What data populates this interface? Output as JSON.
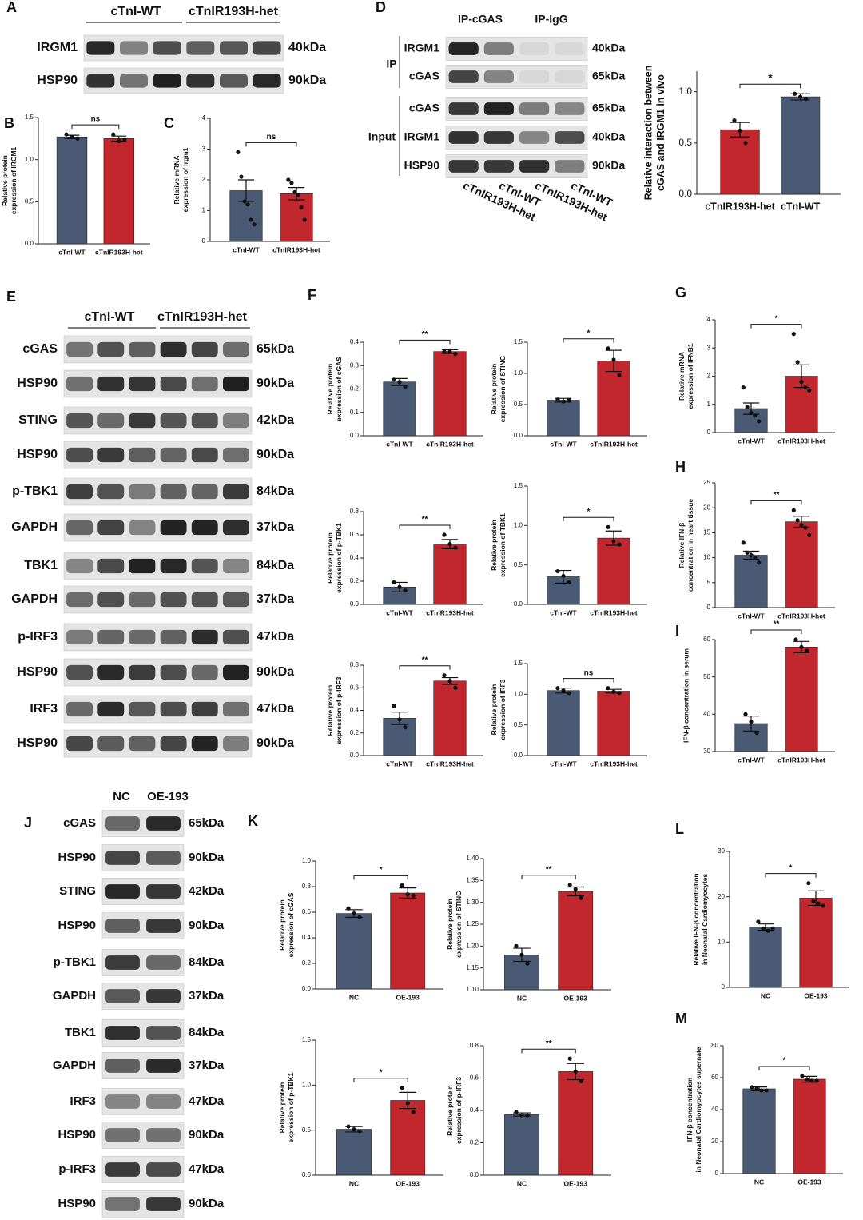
{
  "blots": [
    {
      "panel": "A",
      "groups": [
        "cTnI-WT",
        "cTnIR193H-het"
      ],
      "rows": [
        {
          "label": "IRGM1",
          "size": "40kDa"
        },
        {
          "label": "HSP90",
          "size": "90kDa"
        }
      ]
    },
    {
      "panel": "D",
      "groups": [
        "IP-cGAS",
        "IP-IgG"
      ],
      "side_labels": [
        "IP",
        "Input"
      ],
      "rows": [
        {
          "label": "IRGM1",
          "size": "40kDa"
        },
        {
          "label": "cGAS",
          "size": "65kDa"
        },
        {
          "label": "cGAS",
          "size": "65kDa"
        },
        {
          "label": "IRGM1",
          "size": "40kDa"
        },
        {
          "label": "HSP90",
          "size": "90kDa"
        }
      ],
      "lane_labels": [
        "cTnIR193H-het",
        "cTnI-WT",
        "cTnIR193H-het",
        "cTnI-WT"
      ]
    },
    {
      "panel": "E",
      "groups": [
        "cTnI-WT",
        "cTnIR193H-het"
      ],
      "rows": [
        {
          "label": "cGAS",
          "size": "65kDa"
        },
        {
          "label": "HSP90",
          "size": "90kDa"
        },
        {
          "label": "STING",
          "size": "42kDa"
        },
        {
          "label": "HSP90",
          "size": "90kDa"
        },
        {
          "label": "p-TBK1",
          "size": "84kDa"
        },
        {
          "label": "GAPDH",
          "size": "37kDa"
        },
        {
          "label": "TBK1",
          "size": "84kDa"
        },
        {
          "label": "GAPDH",
          "size": "37kDa"
        },
        {
          "label": "p-IRF3",
          "size": "47kDa"
        },
        {
          "label": "HSP90",
          "size": "90kDa"
        },
        {
          "label": "IRF3",
          "size": "47kDa"
        },
        {
          "label": "HSP90",
          "size": "90kDa"
        }
      ]
    },
    {
      "panel": "J",
      "groups": [
        "NC",
        "OE-193"
      ],
      "rows": [
        {
          "label": "cGAS",
          "size": "65kDa"
        },
        {
          "label": "HSP90",
          "size": "90kDa"
        },
        {
          "label": "STING",
          "size": "42kDa"
        },
        {
          "label": "HSP90",
          "size": "90kDa"
        },
        {
          "label": "p-TBK1",
          "size": "84kDa"
        },
        {
          "label": "GAPDH",
          "size": "37kDa"
        },
        {
          "label": "TBK1",
          "size": "84kDa"
        },
        {
          "label": "GAPDH",
          "size": "37kDa"
        },
        {
          "label": "IRF3",
          "size": "47kDa"
        },
        {
          "label": "HSP90",
          "size": "90kDa"
        },
        {
          "label": "p-IRF3",
          "size": "47kDa"
        },
        {
          "label": "HSP90",
          "size": "90kDa"
        }
      ]
    }
  ],
  "chart_data": [
    {
      "type": "bar",
      "panel": "B",
      "ylabel": [
        "Relative protein",
        "expression of IRGM1"
      ],
      "categories": [
        "cTnI-WT",
        "cTnIR193H-het"
      ],
      "colors": [
        "#4b5a74",
        "#c1272d"
      ],
      "values": [
        1.27,
        1.25
      ],
      "errors": [
        0.02,
        0.03
      ],
      "points": [
        [
          1.3,
          1.27,
          1.25
        ],
        [
          1.3,
          1.22,
          1.24
        ]
      ],
      "significance": "ns",
      "ylim": [
        0,
        1.5
      ],
      "yticks": [
        {
          "value": 0,
          "label": "0.0"
        },
        0.5,
        {
          "value": 1,
          "label": "1.0"
        },
        1.5
      ]
    },
    {
      "type": "bar",
      "panel": "C",
      "ylabel": [
        "Relative mRNA",
        "expression of Irgm1"
      ],
      "categories": [
        "cTnI-WT",
        "cTnIR193H-het"
      ],
      "colors": [
        "#4b5a74",
        "#c1272d"
      ],
      "values": [
        1.65,
        1.55
      ],
      "errors": [
        0.35,
        0.2
      ],
      "points": [
        [
          2.9,
          2.1,
          1.3,
          1.2,
          0.7,
          0.55
        ],
        [
          2.0,
          1.9,
          1.6,
          1.5,
          1.1,
          0.7
        ]
      ],
      "significance": "ns",
      "ylim": [
        0,
        4
      ],
      "yticks": [
        0,
        1,
        2,
        3,
        4
      ]
    },
    {
      "type": "bar",
      "ylabel": [
        "Relative interaction between",
        "cGAS and IRGM1 in vivo"
      ],
      "categories": [
        "cTnIR193H-het",
        "cTnI-WT"
      ],
      "colors": [
        "#c1272d",
        "#4b5a74"
      ],
      "values": [
        0.63,
        0.95
      ],
      "errors": [
        0.07,
        0.03
      ],
      "points": [
        [
          0.72,
          0.62,
          0.5
        ],
        [
          0.98,
          0.95,
          0.93
        ]
      ],
      "significance": "*",
      "ylim": [
        0,
        1.2
      ],
      "yticks": [
        {
          "value": 0,
          "label": "0.0"
        },
        0.5,
        {
          "value": 1,
          "label": "1.0"
        }
      ]
    },
    {
      "type": "bar",
      "panel": "F",
      "ylabel": [
        "Relative protein",
        "expression of cGAS"
      ],
      "categories": [
        "cTnI-WT",
        "cTnIR193H-het"
      ],
      "colors": [
        "#4b5a74",
        "#c1272d"
      ],
      "values": [
        0.23,
        0.36
      ],
      "errors": [
        0.015,
        0.008
      ],
      "points": [
        [
          0.24,
          0.23,
          0.21
        ],
        [
          0.36,
          0.36,
          0.35
        ]
      ],
      "significance": "**",
      "ylim": [
        0,
        0.4
      ],
      "yticks": [
        {
          "value": 0,
          "label": "0.0"
        },
        0.1,
        0.2,
        0.3,
        0.4
      ]
    },
    {
      "type": "bar",
      "ylabel": [
        "Relative protein",
        "expression of STING"
      ],
      "categories": [
        "cTnI-WT",
        "cTnIR193H-het"
      ],
      "colors": [
        "#4b5a74",
        "#c1272d"
      ],
      "values": [
        0.57,
        1.2
      ],
      "errors": [
        0.03,
        0.17
      ],
      "points": [
        [
          0.58,
          0.55,
          0.57
        ],
        [
          1.4,
          1.22,
          0.97
        ]
      ],
      "significance": "*",
      "ylim": [
        0,
        1.5
      ],
      "yticks": [
        {
          "value": 0,
          "label": "0.0"
        },
        0.5,
        {
          "value": 1,
          "label": "1.0"
        },
        1.5
      ]
    },
    {
      "type": "bar",
      "ylabel": [
        "Relative  protein",
        "expression of p-TBK1"
      ],
      "categories": [
        "cTnI-WT",
        "cTnIR193H-het"
      ],
      "colors": [
        "#4b5a74",
        "#c1272d"
      ],
      "values": [
        0.15,
        0.52
      ],
      "errors": [
        0.04,
        0.04
      ],
      "points": [
        [
          0.19,
          0.15,
          0.12
        ],
        [
          0.6,
          0.52,
          0.49
        ]
      ],
      "significance": "**",
      "ylim": [
        0,
        0.8
      ],
      "yticks": [
        {
          "value": 0,
          "label": "0.0"
        },
        0.2,
        0.4,
        0.6,
        0.8
      ]
    },
    {
      "type": "bar",
      "ylabel": [
        "Relative protein",
        "expression of TBK1"
      ],
      "categories": [
        "cTnI-WT",
        "cTnIR193H-het"
      ],
      "colors": [
        "#4b5a74",
        "#c1272d"
      ],
      "values": [
        0.35,
        0.84
      ],
      "errors": [
        0.08,
        0.09
      ],
      "points": [
        [
          0.42,
          0.36,
          0.28
        ],
        [
          0.98,
          0.8,
          0.76
        ]
      ],
      "significance": "*",
      "ylim": [
        0,
        1.5
      ],
      "yticks": [
        {
          "value": 0,
          "label": "0.0"
        },
        0.5,
        {
          "value": 1,
          "label": "1.0"
        },
        1.5
      ]
    },
    {
      "type": "bar",
      "ylabel": [
        "Relative protein",
        "expression of p-IRF3"
      ],
      "categories": [
        "cTnI-WT",
        "cTnIR193H-het"
      ],
      "colors": [
        "#4b5a74",
        "#c1272d"
      ],
      "values": [
        0.33,
        0.66
      ],
      "errors": [
        0.055,
        0.03
      ],
      "points": [
        [
          0.44,
          0.32,
          0.25
        ],
        [
          0.71,
          0.66,
          0.6
        ]
      ],
      "significance": "**",
      "ylim": [
        0,
        0.8
      ],
      "yticks": [
        {
          "value": 0,
          "label": "0.0"
        },
        0.2,
        0.4,
        0.6,
        0.8
      ]
    },
    {
      "type": "bar",
      "ylabel": [
        "Relative protein",
        "expression of IRF3"
      ],
      "categories": [
        "cTnI-WT",
        "cTnIR193H-het"
      ],
      "colors": [
        "#4b5a74",
        "#c1272d"
      ],
      "values": [
        1.06,
        1.05
      ],
      "errors": [
        0.04,
        0.03
      ],
      "points": [
        [
          1.1,
          1.06,
          1.02
        ],
        [
          1.1,
          1.04,
          1.02
        ]
      ],
      "significance": "ns",
      "ylim": [
        0,
        1.5
      ],
      "yticks": [
        {
          "value": 0,
          "label": "0.0"
        },
        0.5,
        {
          "value": 1,
          "label": "1.0"
        },
        1.5
      ]
    },
    {
      "type": "bar",
      "panel": "G",
      "ylabel": [
        "Relative mRNA",
        "expression of IFNB1"
      ],
      "categories": [
        "cTnI-WT",
        "cTnIR193H-het"
      ],
      "colors": [
        "#4b5a74",
        "#c1272d"
      ],
      "values": [
        0.85,
        2.0
      ],
      "errors": [
        0.2,
        0.4
      ],
      "points": [
        [
          1.6,
          0.9,
          0.7,
          0.6,
          0.4
        ],
        [
          3.5,
          2.5,
          1.8,
          1.6,
          1.5
        ]
      ],
      "significance": "*",
      "ylim": [
        0,
        4
      ],
      "yticks": [
        0,
        1,
        2,
        3,
        4
      ]
    },
    {
      "type": "bar",
      "panel": "H",
      "ylabel": [
        "Relative IFN-β",
        "concentration in heart tissue"
      ],
      "categories": [
        "cTnI-WT",
        "cTnIR193H-het"
      ],
      "colors": [
        "#4b5a74",
        "#c1272d"
      ],
      "values": [
        10.5,
        17.2
      ],
      "errors": [
        0.8,
        1.1
      ],
      "points": [
        [
          13,
          11,
          10.5,
          10,
          9
        ],
        [
          19.5,
          17.5,
          16.5,
          16,
          14.5
        ]
      ],
      "significance": "**",
      "ylim": [
        0,
        25
      ],
      "yticks": [
        0,
        5,
        10,
        15,
        20,
        25
      ]
    },
    {
      "type": "bar",
      "panel": "I",
      "ylabel": [
        "IFN-β concentration in serum"
      ],
      "categories": [
        "cTnI-WT",
        "cTnIR193H-het"
      ],
      "colors": [
        "#4b5a74",
        "#c1272d"
      ],
      "values": [
        37.5,
        58
      ],
      "errors": [
        2,
        1.5
      ],
      "points": [
        [
          40,
          38,
          35
        ],
        [
          60,
          58,
          57
        ]
      ],
      "significance": "**",
      "ylim": [
        30,
        60
      ],
      "yticks": [
        30,
        40,
        50,
        60
      ]
    },
    {
      "type": "bar",
      "panel": "K",
      "ylabel": [
        "Relative protein",
        "expression of cGAS"
      ],
      "categories": [
        "NC",
        "OE-193"
      ],
      "colors": [
        "#4b5a74",
        "#c1272d"
      ],
      "values": [
        0.59,
        0.75
      ],
      "errors": [
        0.03,
        0.04
      ],
      "points": [
        [
          0.63,
          0.59,
          0.56
        ],
        [
          0.81,
          0.74,
          0.73
        ]
      ],
      "significance": "*",
      "ylim": [
        0,
        1.0
      ],
      "yticks": [
        {
          "value": 0,
          "label": "0.0"
        },
        0.2,
        0.4,
        0.6,
        0.8,
        {
          "value": 1,
          "label": "1.0"
        }
      ]
    },
    {
      "type": "bar",
      "ylabel": [
        "Relative protein",
        "expression of STING"
      ],
      "categories": [
        "NC",
        "OE-193"
      ],
      "colors": [
        "#4b5a74",
        "#c1272d"
      ],
      "values": [
        1.18,
        1.325
      ],
      "errors": [
        0.015,
        0.01
      ],
      "points": [
        [
          1.2,
          1.18,
          1.16
        ],
        [
          1.34,
          1.33,
          1.31
        ]
      ],
      "significance": "**",
      "ylim": [
        1.1,
        1.4
      ],
      "yticks": [
        {
          "value": 1.1,
          "label": "1.10"
        },
        1.15,
        {
          "value": 1.2,
          "label": "1.20"
        },
        1.25,
        {
          "value": 1.3,
          "label": "1.30"
        },
        1.35,
        {
          "value": 1.4,
          "label": "1.40"
        }
      ]
    },
    {
      "type": "bar",
      "ylabel": [
        "Relative protein",
        "expression of p-TBK1"
      ],
      "categories": [
        "NC",
        "OE-193"
      ],
      "colors": [
        "#4b5a74",
        "#c1272d"
      ],
      "values": [
        0.51,
        0.83
      ],
      "errors": [
        0.03,
        0.09
      ],
      "points": [
        [
          0.54,
          0.51,
          0.49
        ],
        [
          0.97,
          0.8,
          0.7
        ]
      ],
      "significance": "*",
      "ylim": [
        0,
        1.5
      ],
      "yticks": [
        {
          "value": 0,
          "label": "0.0"
        },
        0.5,
        {
          "value": 1,
          "label": "1.0"
        },
        1.5
      ]
    },
    {
      "type": "bar",
      "ylabel": [
        "Relative protein",
        "expression of p-IRF3"
      ],
      "categories": [
        "NC",
        "OE-193"
      ],
      "colors": [
        "#4b5a74",
        "#c1272d"
      ],
      "values": [
        0.375,
        0.64
      ],
      "errors": [
        0.01,
        0.05
      ],
      "points": [
        [
          0.39,
          0.37,
          0.37
        ],
        [
          0.72,
          0.64,
          0.58
        ]
      ],
      "significance": "**",
      "ylim": [
        0,
        0.8
      ],
      "yticks": [
        {
          "value": 0,
          "label": "0.0"
        },
        0.2,
        0.4,
        0.6,
        0.8
      ]
    },
    {
      "type": "bar",
      "panel": "L",
      "ylabel": [
        "Relative IFN-β concentration",
        "in Neonatal Cardiomyocytes"
      ],
      "categories": [
        "NC",
        "OE-193"
      ],
      "colors": [
        "#4b5a74",
        "#c1272d"
      ],
      "values": [
        13.3,
        19.7
      ],
      "errors": [
        0.7,
        1.6
      ],
      "points": [
        [
          14.5,
          13,
          12.5,
          13
        ],
        [
          23,
          19,
          18.5,
          18
        ]
      ],
      "significance": "*",
      "ylim": [
        0,
        30
      ],
      "yticks": [
        0,
        10,
        20,
        30
      ]
    },
    {
      "type": "bar",
      "panel": "M",
      "ylabel": [
        "IFN-β concentration",
        "in Neonatal Cardiomyocytes supernate"
      ],
      "categories": [
        "NC",
        "OE-193"
      ],
      "colors": [
        "#4b5a74",
        "#c1272d"
      ],
      "values": [
        53,
        59
      ],
      "errors": [
        1.2,
        1.8
      ],
      "points": [
        [
          54,
          53,
          52,
          52
        ],
        [
          61,
          59,
          58,
          58
        ]
      ],
      "significance": "*",
      "ylim": [
        0,
        80
      ],
      "yticks": [
        0,
        20,
        40,
        60,
        80
      ]
    }
  ]
}
